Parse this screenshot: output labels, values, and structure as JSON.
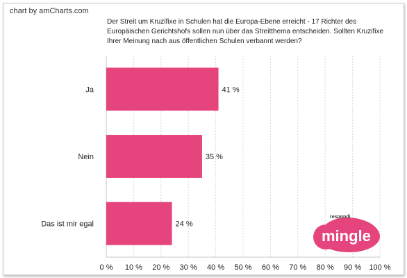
{
  "header": {
    "credit": "chart by amCharts.com",
    "question": "Der Streit um Kruzifixe in Schulen hat die Europa-Ebene erreicht - 17 Richter des Europäischen Gerichtshofs sollen nun über das Streitthema entscheiden. Sollten Kruzifixe Ihrer Meinung nach aus öffentlichen Schulen verbannt werden?"
  },
  "logo": {
    "small_text": "respondi",
    "main_text": "mingle",
    "color": "#e6447c"
  },
  "chart_data": {
    "type": "bar",
    "orientation": "horizontal",
    "categories": [
      "Ja",
      "Nein",
      "Das ist mir egal"
    ],
    "values": [
      41,
      35,
      24
    ],
    "data_labels": [
      "41 %",
      "35 %",
      "24 %"
    ],
    "xlim": [
      0,
      100
    ],
    "x_ticks": [
      0,
      10,
      20,
      30,
      40,
      50,
      60,
      70,
      80,
      90,
      100
    ],
    "x_tick_labels": [
      "0 %",
      "10 %",
      "20 %",
      "30 %",
      "40 %",
      "50 %",
      "60 %",
      "70 %",
      "80 %",
      "90 %",
      "100 %"
    ],
    "grid": true,
    "bar_color": "#e6447c"
  }
}
